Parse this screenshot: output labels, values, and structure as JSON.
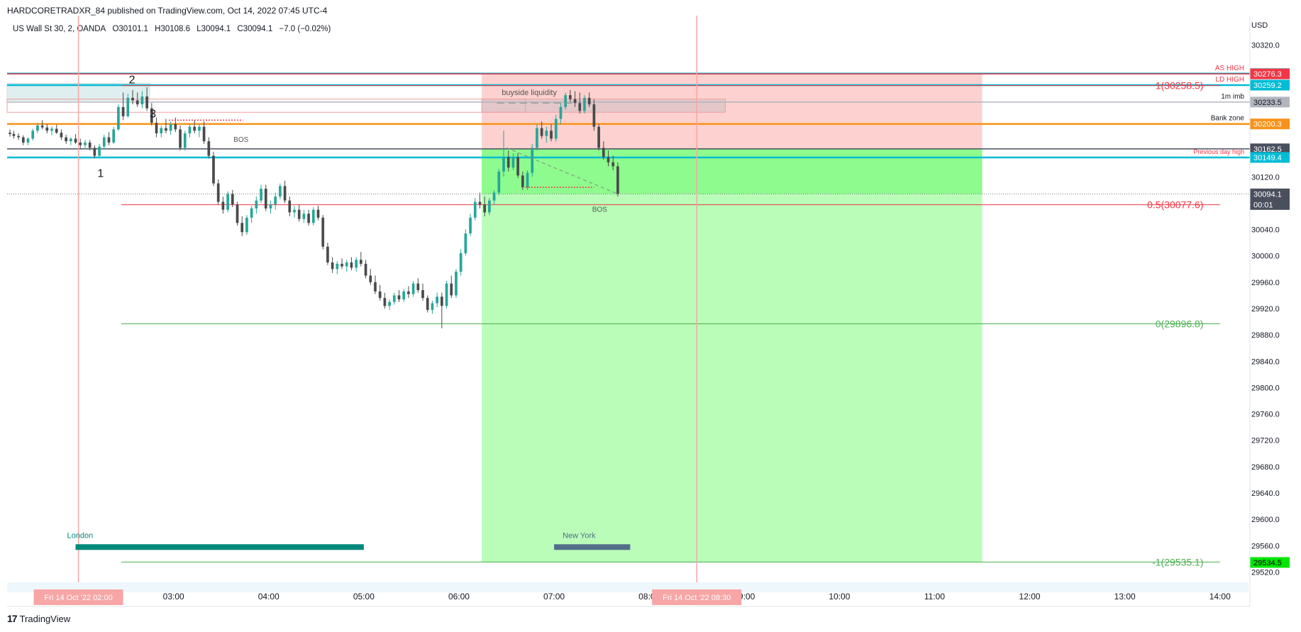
{
  "header": {
    "publisher": "HARDCORETRADXR_84 published on TradingView.com, Oct 14, 2022 07:45 UTC-4"
  },
  "legend": {
    "symbol": "US Wall St 30, 2, OANDA",
    "open": "O30101.1",
    "high": "H30108.6",
    "low": "L30094.1",
    "close": "C30094.1",
    "change": "−7.0 (−0.02%)"
  },
  "footer": {
    "brand": "TradingView",
    "logo_glyph": "17"
  },
  "colors": {
    "up": "#26a69a",
    "down": "#4a4a4a",
    "cyan": "#00bcd4",
    "orange": "#f7931a",
    "red": "#f23645",
    "green_zone": "#b9fdb9",
    "green_strong": "#8dfb8d",
    "red_zone": "#fcd1cf",
    "fib_red": "#f23645",
    "fib_green": "#4caf50",
    "session_london": "#00897b",
    "session_ny": "#546e8a",
    "time_marker": "#f7a5a5"
  },
  "chart_data": {
    "type": "candlestick",
    "yaxis": {
      "unit": "USD",
      "range": [
        29500,
        30340
      ],
      "ticks": [
        30320.0,
        30120.0,
        30040.0,
        30000.0,
        29960.0,
        29920.0,
        29880.0,
        29840.0,
        29800.0,
        29760.0,
        29720.0,
        29680.0,
        29640.0,
        29600.0,
        29560.0,
        29520.0
      ]
    },
    "xaxis": {
      "range_hours": [
        1.25,
        14.3
      ],
      "ticks": [
        {
          "t": 3,
          "label": "03:00"
        },
        {
          "t": 4,
          "label": "04:00"
        },
        {
          "t": 5,
          "label": "05:00"
        },
        {
          "t": 6,
          "label": "06:00"
        },
        {
          "t": 7,
          "label": "07:00"
        },
        {
          "t": 8,
          "label": "08:00"
        },
        {
          "t": 9,
          "label": "09:00"
        },
        {
          "t": 10,
          "label": "10:00"
        },
        {
          "t": 11,
          "label": "11:00"
        },
        {
          "t": 12,
          "label": "12:00"
        },
        {
          "t": 13,
          "label": "13:00"
        },
        {
          "t": 14,
          "label": "14:00"
        }
      ],
      "markers": [
        {
          "t": 2.0,
          "label": "Fri 14 Oct '22   02:00"
        },
        {
          "t": 8.5,
          "label": "Fri 14 Oct '22   08:30"
        }
      ]
    },
    "candles": [
      [
        1.28,
        30187,
        30192,
        30181,
        30185
      ],
      [
        1.32,
        30185,
        30190,
        30178,
        30182
      ],
      [
        1.37,
        30182,
        30186,
        30176,
        30180
      ],
      [
        1.42,
        30180,
        30183,
        30168,
        30172
      ],
      [
        1.47,
        30172,
        30180,
        30168,
        30178
      ],
      [
        1.52,
        30178,
        30193,
        30175,
        30190
      ],
      [
        1.57,
        30190,
        30202,
        30186,
        30198
      ],
      [
        1.62,
        30198,
        30206,
        30192,
        30195
      ],
      [
        1.67,
        30195,
        30200,
        30186,
        30190
      ],
      [
        1.72,
        30190,
        30197,
        30183,
        30193
      ],
      [
        1.77,
        30193,
        30199,
        30185,
        30187
      ],
      [
        1.82,
        30187,
        30192,
        30176,
        30180
      ],
      [
        1.87,
        30180,
        30184,
        30170,
        30174
      ],
      [
        1.92,
        30174,
        30180,
        30168,
        30178
      ],
      [
        1.97,
        30178,
        30185,
        30170,
        30172
      ],
      [
        2.02,
        30172,
        30178,
        30162,
        30168
      ],
      [
        2.07,
        30168,
        30176,
        30162,
        30172
      ],
      [
        2.12,
        30172,
        30176,
        30160,
        30164
      ],
      [
        2.17,
        30164,
        30168,
        30148,
        30152
      ],
      [
        2.22,
        30152,
        30170,
        30150,
        30166
      ],
      [
        2.27,
        30166,
        30184,
        30162,
        30180
      ],
      [
        2.32,
        30180,
        30188,
        30168,
        30172
      ],
      [
        2.37,
        30172,
        30196,
        30170,
        30192
      ],
      [
        2.42,
        30192,
        30230,
        30190,
        30226
      ],
      [
        2.47,
        30226,
        30248,
        30206,
        30212
      ],
      [
        2.52,
        30212,
        30246,
        30210,
        30240
      ],
      [
        2.57,
        30240,
        30252,
        30230,
        30236
      ],
      [
        2.62,
        30236,
        30248,
        30226,
        30230
      ],
      [
        2.67,
        30230,
        30250,
        30224,
        30242
      ],
      [
        2.72,
        30242,
        30256,
        30220,
        30224
      ],
      [
        2.77,
        30224,
        30232,
        30198,
        30202
      ],
      [
        2.82,
        30202,
        30210,
        30180,
        30186
      ],
      [
        2.87,
        30186,
        30198,
        30180,
        30194
      ],
      [
        2.92,
        30194,
        30208,
        30186,
        30190
      ],
      [
        2.97,
        30190,
        30204,
        30184,
        30200
      ],
      [
        3.02,
        30200,
        30210,
        30188,
        30192
      ],
      [
        3.07,
        30192,
        30198,
        30160,
        30164
      ],
      [
        3.12,
        30164,
        30190,
        30160,
        30186
      ],
      [
        3.17,
        30186,
        30200,
        30180,
        30196
      ],
      [
        3.22,
        30196,
        30206,
        30186,
        30190
      ],
      [
        3.27,
        30190,
        30200,
        30180,
        30196
      ],
      [
        3.32,
        30196,
        30204,
        30170,
        30174
      ],
      [
        3.37,
        30174,
        30180,
        30148,
        30152
      ],
      [
        3.42,
        30152,
        30158,
        30106,
        30110
      ],
      [
        3.47,
        30110,
        30116,
        30078,
        30082
      ],
      [
        3.52,
        30082,
        30090,
        30064,
        30070
      ],
      [
        3.57,
        30070,
        30098,
        30066,
        30094
      ],
      [
        3.62,
        30094,
        30100,
        30074,
        30078
      ],
      [
        3.67,
        30078,
        30082,
        30046,
        30050
      ],
      [
        3.72,
        30050,
        30060,
        30030,
        30036
      ],
      [
        3.77,
        30036,
        30062,
        30032,
        30058
      ],
      [
        3.82,
        30058,
        30076,
        30050,
        30072
      ],
      [
        3.87,
        30072,
        30090,
        30064,
        30084
      ],
      [
        3.92,
        30084,
        30108,
        30080,
        30102
      ],
      [
        3.97,
        30102,
        30108,
        30068,
        30072
      ],
      [
        4.02,
        30072,
        30084,
        30064,
        30078
      ],
      [
        4.07,
        30078,
        30096,
        30070,
        30090
      ],
      [
        4.12,
        30090,
        30110,
        30086,
        30106
      ],
      [
        4.17,
        30106,
        30114,
        30080,
        30084
      ],
      [
        4.22,
        30084,
        30090,
        30060,
        30066
      ],
      [
        4.27,
        30066,
        30076,
        30058,
        30070
      ],
      [
        4.32,
        30070,
        30078,
        30052,
        30056
      ],
      [
        4.37,
        30056,
        30070,
        30050,
        30064
      ],
      [
        4.42,
        30064,
        30070,
        30046,
        30050
      ],
      [
        4.47,
        30050,
        30074,
        30046,
        30070
      ],
      [
        4.52,
        30070,
        30076,
        30054,
        30058
      ],
      [
        4.57,
        30058,
        30062,
        30010,
        30014
      ],
      [
        4.62,
        30014,
        30020,
        29986,
        29990
      ],
      [
        4.67,
        29990,
        29998,
        29974,
        29980
      ],
      [
        4.72,
        29980,
        29992,
        29972,
        29988
      ],
      [
        4.77,
        29988,
        29996,
        29980,
        29984
      ],
      [
        4.82,
        29984,
        29994,
        29976,
        29990
      ],
      [
        4.87,
        29990,
        29998,
        29978,
        29982
      ],
      [
        4.92,
        29982,
        29998,
        29976,
        29994
      ],
      [
        4.97,
        29994,
        30006,
        29984,
        29988
      ],
      [
        5.02,
        29988,
        29994,
        29966,
        29970
      ],
      [
        5.07,
        29970,
        29980,
        29956,
        29960
      ],
      [
        5.12,
        29960,
        29970,
        29942,
        29946
      ],
      [
        5.17,
        29946,
        29956,
        29932,
        29936
      ],
      [
        5.22,
        29936,
        29944,
        29920,
        29924
      ],
      [
        5.27,
        29924,
        29934,
        29918,
        29930
      ],
      [
        5.32,
        29930,
        29944,
        29926,
        29940
      ],
      [
        5.37,
        29940,
        29948,
        29930,
        29934
      ],
      [
        5.42,
        29934,
        29950,
        29930,
        29946
      ],
      [
        5.47,
        29946,
        29954,
        29936,
        29942
      ],
      [
        5.52,
        29942,
        29962,
        29938,
        29958
      ],
      [
        5.57,
        29958,
        29966,
        29944,
        29948
      ],
      [
        5.62,
        29948,
        29958,
        29932,
        29936
      ],
      [
        5.67,
        29936,
        29940,
        29914,
        29918
      ],
      [
        5.72,
        29918,
        29932,
        29912,
        29928
      ],
      [
        5.77,
        29928,
        29944,
        29922,
        29938
      ],
      [
        5.82,
        29938,
        29944,
        29890,
        29924
      ],
      [
        5.87,
        29924,
        29962,
        29920,
        29958
      ],
      [
        5.92,
        29958,
        29970,
        29936,
        29940
      ],
      [
        5.97,
        29940,
        29980,
        29936,
        29976
      ],
      [
        6.02,
        29976,
        30010,
        29970,
        30004
      ],
      [
        6.07,
        30004,
        30040,
        30000,
        30034
      ],
      [
        6.12,
        30034,
        30064,
        30030,
        30058
      ],
      [
        6.17,
        30058,
        30088,
        30054,
        30082
      ],
      [
        6.22,
        30082,
        30096,
        30072,
        30078
      ],
      [
        6.27,
        30078,
        30090,
        30060,
        30066
      ],
      [
        6.32,
        30066,
        30088,
        30062,
        30084
      ],
      [
        6.37,
        30084,
        30100,
        30078,
        30096
      ],
      [
        6.42,
        30096,
        30132,
        30092,
        30128
      ],
      [
        6.47,
        30128,
        30190,
        30120,
        30150
      ],
      [
        6.52,
        30150,
        30160,
        30128,
        30134
      ],
      [
        6.57,
        30134,
        30156,
        30130,
        30150
      ],
      [
        6.62,
        30150,
        30156,
        30118,
        30122
      ],
      [
        6.67,
        30122,
        30128,
        30100,
        30104
      ],
      [
        6.72,
        30104,
        30130,
        30100,
        30126
      ],
      [
        6.77,
        30126,
        30170,
        30120,
        30164
      ],
      [
        6.82,
        30164,
        30200,
        30160,
        30194
      ],
      [
        6.87,
        30194,
        30204,
        30178,
        30182
      ],
      [
        6.92,
        30182,
        30196,
        30172,
        30190
      ],
      [
        6.97,
        30190,
        30200,
        30174,
        30178
      ],
      [
        7.02,
        30178,
        30214,
        30174,
        30208
      ],
      [
        7.07,
        30208,
        30232,
        30200,
        30226
      ],
      [
        7.12,
        30226,
        30248,
        30222,
        30244
      ],
      [
        7.17,
        30244,
        30252,
        30234,
        30238
      ],
      [
        7.22,
        30238,
        30250,
        30226,
        30232
      ],
      [
        7.27,
        30232,
        30248,
        30216,
        30220
      ],
      [
        7.32,
        30220,
        30244,
        30216,
        30240
      ],
      [
        7.37,
        30240,
        30248,
        30226,
        30230
      ],
      [
        7.42,
        30230,
        30238,
        30190,
        30196
      ],
      [
        7.47,
        30196,
        30200,
        30160,
        30164
      ],
      [
        7.52,
        30164,
        30174,
        30146,
        30150
      ],
      [
        7.57,
        30150,
        30160,
        30136,
        30142
      ],
      [
        7.62,
        30142,
        30152,
        30130,
        30136
      ],
      [
        7.67,
        30136,
        30142,
        30090,
        30094
      ]
    ],
    "horizontal_levels": [
      {
        "price": 30276.7,
        "label": "AS HIGH",
        "tag": "30276.7",
        "color": "#00bcd4"
      },
      {
        "price": 30276.3,
        "tag": "30276.3",
        "color": "#f23645"
      },
      {
        "price": 30259.2,
        "label": "LD HIGH",
        "tag": "30259.2",
        "color": "#00bcd4"
      },
      {
        "price": 30233.5,
        "label": "1m imb",
        "tag": "30233.5",
        "color": "#b2b5be"
      },
      {
        "price": 30200.3,
        "label": "Bank zone",
        "tag": "30200.3",
        "color": "#f7931a"
      },
      {
        "price": 30162.5,
        "tag": "30162.5",
        "color": "#4a4f5e"
      },
      {
        "price": 30149.4,
        "label": "Previous day high",
        "tag": "30149.4",
        "color": "#00bcd4"
      },
      {
        "price": 30094.1,
        "tag": "30094.1",
        "tag2": "00:01",
        "color": "#4a4f5e"
      },
      {
        "price": 29534.5,
        "tag": "29534.5",
        "color": "#00e600"
      }
    ],
    "fib": [
      {
        "level": "1(30258.5)",
        "price": 30258.5,
        "color": "#f23645"
      },
      {
        "level": "0.5(30077.6)",
        "price": 30077.6,
        "color": "#f23645"
      },
      {
        "level": "0(29896.8)",
        "price": 29896.8,
        "color": "#4caf50"
      },
      {
        "level": "-1(29535.1)",
        "price": 29535.1,
        "color": "#4caf50"
      }
    ],
    "annotations": {
      "swing_labels": [
        {
          "text": "2",
          "t": 2.53,
          "price": 30262
        },
        {
          "text": "3",
          "t": 2.75,
          "price": 30210
        },
        {
          "text": "1",
          "t": 2.2,
          "price": 30120
        }
      ],
      "bos_labels": [
        {
          "text": "BOS",
          "t": 3.63,
          "price": 30186
        },
        {
          "text": "BOS",
          "t": 7.4,
          "price": 30080
        }
      ],
      "liquidity_label": "buyside liquidity",
      "sessions": [
        {
          "name": "London",
          "t0": 1.97,
          "t1": 5.0
        },
        {
          "name": "New York",
          "t0": 7.0,
          "t1": 7.8
        }
      ]
    },
    "position": {
      "entry": 30162.5,
      "stop": 30276.7,
      "target": 29534.5,
      "t0": 6.24,
      "t1": 11.5
    }
  }
}
